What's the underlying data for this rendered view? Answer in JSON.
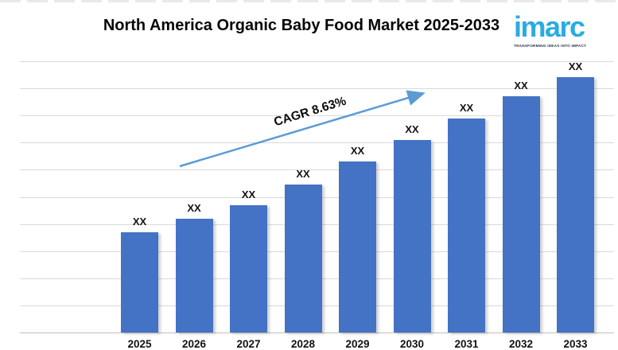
{
  "page": {
    "title": "North America Organic Baby Food Market 2025-2033"
  },
  "logo": {
    "wordmark": "imarc",
    "tagline": "TRANSFORMING IDEAS INTO IMPACT",
    "brand_color": "#29ABE2"
  },
  "annotation": {
    "cagr_label": "CAGR 8.63%"
  },
  "chart_data": {
    "type": "bar",
    "title": "North America Organic Baby Food Market 2025-2033",
    "categories": [
      "2025",
      "2026",
      "2027",
      "2028",
      "2029",
      "2030",
      "2031",
      "2032",
      "2033"
    ],
    "bar_labels": [
      "XX",
      "XX",
      "XX",
      "XX",
      "XX",
      "XX",
      "XX",
      "XX",
      "XX"
    ],
    "values_note": "actual values redacted in chart; bars labeled XX",
    "estimated_relative_heights": [
      3.7,
      4.2,
      4.7,
      5.45,
      6.3,
      7.1,
      7.9,
      8.7,
      9.4
    ],
    "cagr_annotation": "CAGR 8.63%",
    "xlabel": "",
    "ylabel": "",
    "value_axis_visible": false,
    "gridlines": true,
    "gridline_count": 11,
    "legend": "none",
    "colors": {
      "bar": "#4472C4",
      "arrow": "#5B9BD5",
      "gridline": "#d9d9d9",
      "axis_line": "#bfbfbf",
      "label_text": "#121212"
    }
  }
}
